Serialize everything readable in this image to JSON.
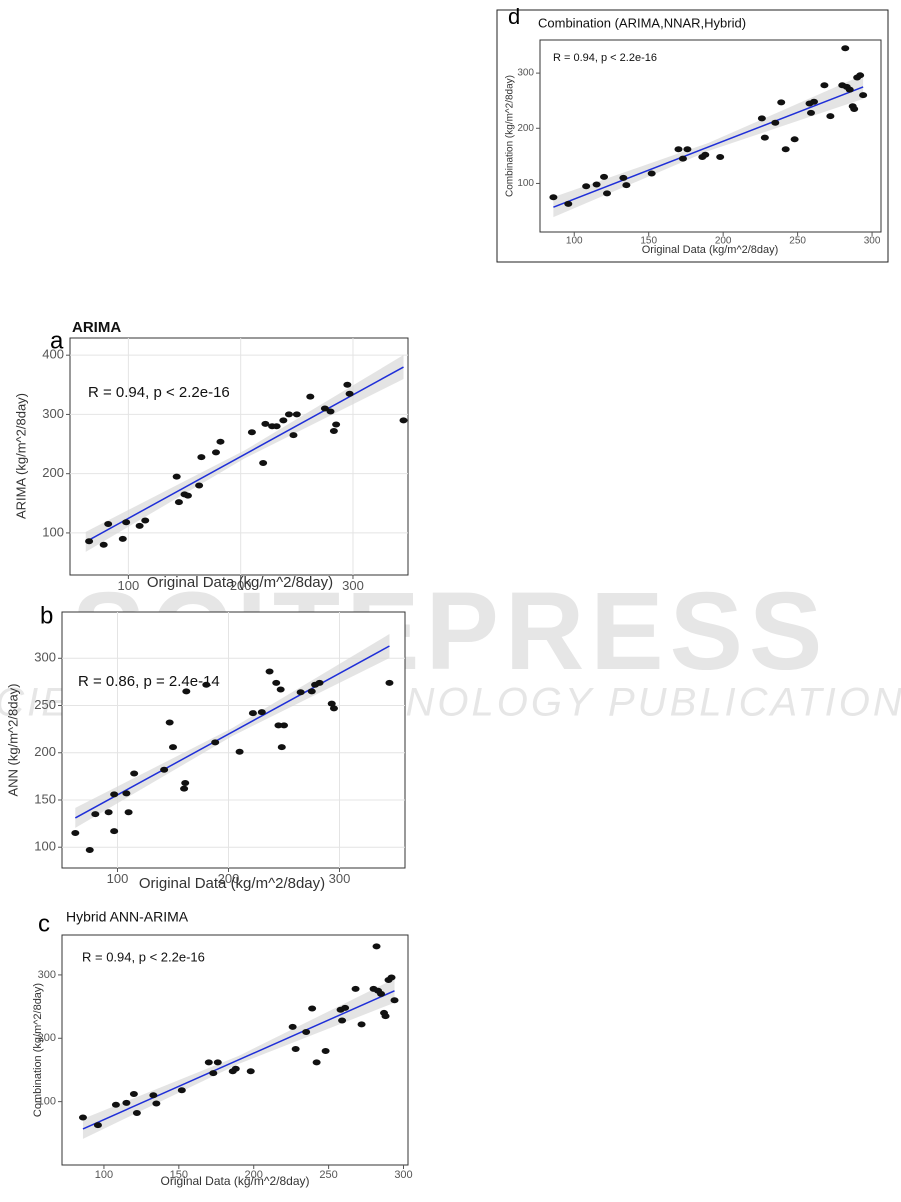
{
  "watermark": [
    "SCITEPRESS",
    "SCIENCE AND TECHNOLOGY PUBLICATIONS"
  ],
  "chart_data": [
    {
      "type": "scatter",
      "panel_label": "a",
      "title": "ARIMA",
      "annotation": "R = 0.94, p < 2.2e-16",
      "x_label": "Original Data (kg/m^2/8day)",
      "y_label": "ARIMA (kg/m^2/8day)",
      "x": [
        65,
        78,
        82,
        95,
        98,
        110,
        115,
        143,
        145,
        150,
        153,
        163,
        165,
        178,
        182,
        210,
        220,
        222,
        228,
        232,
        238,
        243,
        247,
        250,
        262,
        275,
        280,
        283,
        285,
        295,
        297,
        345
      ],
      "values": [
        86,
        80,
        115,
        90,
        118,
        112,
        121,
        195,
        152,
        165,
        163,
        180,
        228,
        236,
        254,
        270,
        218,
        284,
        280,
        280,
        290,
        300,
        265,
        300,
        330,
        310,
        305,
        272,
        283,
        350,
        335,
        290
      ],
      "trend": {
        "x": [
          62,
          345
        ],
        "values": [
          85,
          380
        ]
      },
      "color": "#111111",
      "line_color": "#1f2fd8",
      "grid": true,
      "xlim": [
        48,
        349
      ],
      "ylim": [
        29,
        429
      ],
      "xticks": [
        100,
        200,
        300
      ],
      "yticks": [
        100,
        200,
        300,
        400
      ]
    },
    {
      "type": "scatter",
      "panel_label": "b",
      "annotation": "R = 0.86, p = 2.4e-14",
      "x_label": "Original Data (kg/m^2/8day)",
      "y_label": "ANN (kg/m^2/8day)",
      "x": [
        62,
        75,
        80,
        92,
        97,
        97,
        108,
        110,
        115,
        142,
        147,
        150,
        160,
        161,
        162,
        180,
        188,
        210,
        222,
        230,
        237,
        243,
        247,
        245,
        248,
        250,
        265,
        275,
        278,
        282,
        293,
        295,
        345
      ],
      "values": [
        115,
        97,
        135,
        137,
        156,
        117,
        157,
        137,
        178,
        182,
        232,
        206,
        162,
        168,
        265,
        272,
        211,
        201,
        242,
        243,
        286,
        274,
        267,
        229,
        206,
        229,
        264,
        265,
        272,
        274,
        252,
        247,
        274
      ],
      "trend": {
        "x": [
          62,
          345
        ],
        "values": [
          131,
          313
        ]
      },
      "color": "#111111",
      "line_color": "#1f2fd8",
      "grid": true,
      "xlim": [
        50,
        359
      ],
      "ylim": [
        78,
        349
      ],
      "xticks": [
        100,
        200,
        300
      ],
      "yticks": [
        100,
        150,
        200,
        250,
        300
      ]
    },
    {
      "type": "scatter",
      "panel_label": "c",
      "title": "Hybrid ANN-ARIMA",
      "annotation": "R = 0.94, p < 2.2e-16",
      "x_label": "Original Data (kg/m^2/8day)",
      "y_label": "Combination (kg/m^2/8day)",
      "x": [
        86,
        96,
        108,
        115,
        120,
        122,
        133,
        135,
        152,
        170,
        173,
        176,
        186,
        188,
        198,
        226,
        228,
        235,
        239,
        242,
        248,
        258,
        259,
        261,
        268,
        272,
        280,
        282,
        283,
        285,
        287,
        288,
        290,
        292,
        294
      ],
      "values": [
        75,
        63,
        95,
        98,
        112,
        82,
        110,
        97,
        118,
        162,
        145,
        162,
        148,
        152,
        148,
        218,
        183,
        210,
        247,
        162,
        180,
        245,
        228,
        248,
        278,
        222,
        278,
        345,
        275,
        270,
        240,
        235,
        292,
        296,
        260
      ],
      "trend": {
        "x": [
          86,
          294
        ],
        "values": [
          57,
          275
        ]
      },
      "color": "#111111",
      "line_color": "#1f2fd8",
      "grid": false,
      "xlim": [
        72,
        303
      ],
      "ylim": [
        0,
        363
      ],
      "xticks": [
        100,
        150,
        200,
        250,
        300
      ],
      "yticks": [
        100,
        200,
        300
      ]
    },
    {
      "type": "scatter",
      "panel_label": "d",
      "title": "Combination (ARIMA,NNAR,Hybrid)",
      "annotation": "R = 0.94, p < 2.2e-16",
      "x_label": "Original Data (kg/m^2/8day)",
      "y_label": "Combination (kg/m^2/8day)",
      "x": [
        86,
        96,
        108,
        115,
        120,
        122,
        133,
        135,
        152,
        170,
        173,
        176,
        186,
        188,
        198,
        226,
        228,
        235,
        239,
        242,
        248,
        258,
        259,
        261,
        268,
        272,
        280,
        282,
        283,
        285,
        287,
        288,
        290,
        292,
        294
      ],
      "values": [
        75,
        63,
        95,
        98,
        112,
        82,
        110,
        97,
        118,
        162,
        145,
        162,
        148,
        152,
        148,
        218,
        183,
        210,
        247,
        162,
        180,
        245,
        228,
        248,
        278,
        222,
        278,
        345,
        275,
        270,
        240,
        235,
        292,
        296,
        260
      ],
      "trend": {
        "x": [
          86,
          294
        ],
        "values": [
          57,
          275
        ]
      },
      "color": "#111111",
      "line_color": "#1f2fd8",
      "grid": false,
      "xlim": [
        77,
        306
      ],
      "ylim": [
        12,
        360
      ],
      "xticks": [
        100,
        150,
        200,
        250,
        300
      ],
      "yticks": [
        100,
        200,
        300
      ]
    }
  ]
}
